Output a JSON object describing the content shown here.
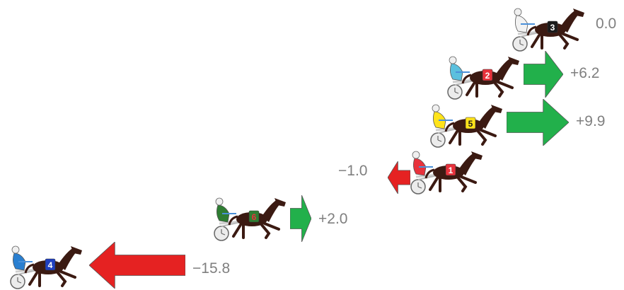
{
  "runners": [
    {
      "number": "3",
      "saddle_color": "#1a1a1a",
      "number_color": "#ffffff",
      "driver_color": "#f2f2f2",
      "change": "0.0",
      "direction": "none"
    },
    {
      "number": "2",
      "saddle_color": "#e8323c",
      "number_color": "#ffffff",
      "driver_color": "#5bc0de",
      "change": "+6.2",
      "direction": "up"
    },
    {
      "number": "5",
      "saddle_color": "#ffe31a",
      "number_color": "#1a1a1a",
      "driver_color": "#ffe31a",
      "change": "+9.9",
      "direction": "up"
    },
    {
      "number": "1",
      "saddle_color": "#e8323c",
      "number_color": "#ffffff",
      "driver_color": "#e8323c",
      "change": "−1.0",
      "direction": "down"
    },
    {
      "number": "6",
      "saddle_color": "#2e7d32",
      "number_color": "#e8323c",
      "driver_color": "#2e7d32",
      "change": "+2.0",
      "direction": "up"
    },
    {
      "number": "4",
      "saddle_color": "#2040c0",
      "number_color": "#ffffff",
      "driver_color": "#2a7fd0",
      "change": "−15.8",
      "direction": "down"
    }
  ],
  "colors": {
    "gain": "#22b04b",
    "loss": "#e52222",
    "label": "#7f7f7f",
    "horse": "#3b1a12"
  }
}
